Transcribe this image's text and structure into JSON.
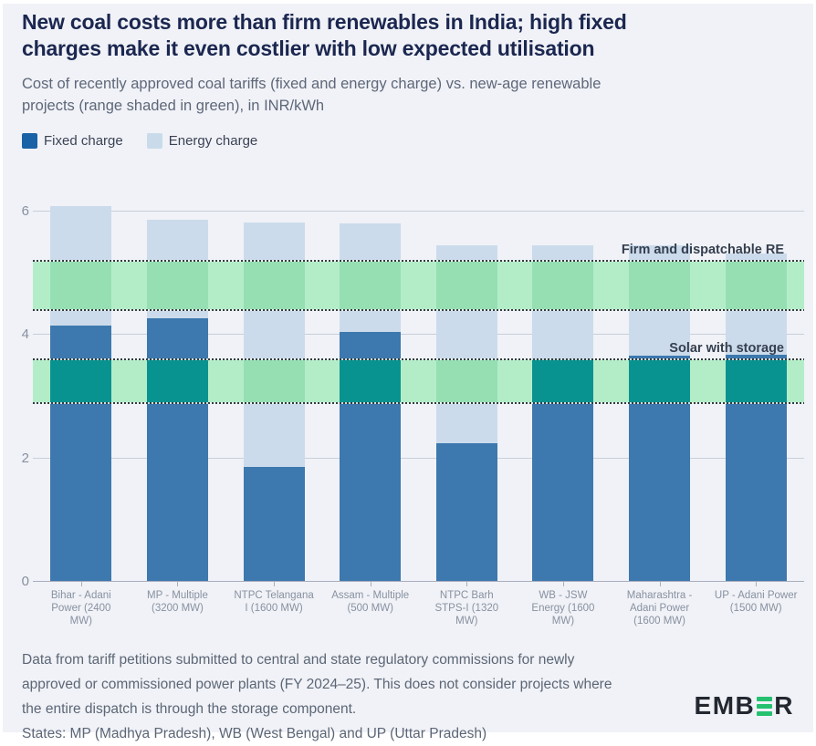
{
  "header": {
    "title_line1": "New coal costs more than firm renewables in India; high fixed",
    "title_line2": "charges make it even costlier with low expected utilisation",
    "subtitle_line1": "Cost of recently approved coal tariffs (fixed and energy charge) vs. new-age renewable",
    "subtitle_line2": "projects (range shaded in green), in INR/kWh"
  },
  "legend": {
    "fixed_label": "Fixed charge",
    "energy_label": "Energy charge"
  },
  "chart_data": {
    "type": "bar",
    "stacked": true,
    "unit": "INR/kWh",
    "categories": [
      "Bihar - Adani Power (2400 MW)",
      "MP - Multiple (3200 MW)",
      "NTPC Telangana I (1600 MW)",
      "Assam - Multiple (500 MW)",
      "NTPC Barh STPS-I (1320 MW)",
      "WB - JSW Energy (1600 MW)",
      "Maharashtra - Adani Power (1600 MW)",
      "UP - Adani Power (1500 MW)"
    ],
    "series": [
      {
        "name": "Fixed charge",
        "values": [
          4.15,
          4.27,
          1.86,
          4.05,
          2.24,
          3.62,
          3.67,
          3.68
        ]
      },
      {
        "name": "Energy charge",
        "values": [
          1.93,
          1.59,
          3.95,
          1.74,
          3.2,
          1.82,
          1.77,
          1.63
        ]
      }
    ],
    "totals": [
      6.08,
      5.86,
      5.81,
      5.79,
      5.44,
      5.44,
      5.44,
      5.31
    ],
    "y_axis": {
      "ticks": [
        0,
        2,
        4,
        6
      ],
      "max": 6.32
    },
    "bands": [
      {
        "label": "Firm and dispatchable RE",
        "from": 4.4,
        "to": 5.2
      },
      {
        "label": "Solar with storage",
        "from": 2.9,
        "to": 3.6
      }
    ],
    "colors": {
      "fixed_swatch": "#1a62a6",
      "energy_swatch": "#c9dbea",
      "fixed_bar": "#3d78ae",
      "energy_bar": "#cbdbeb",
      "band_bg": "#b3edc8",
      "band_on_energy": "#95dfb3",
      "band_on_fixed": "#089390",
      "grid": "#c9ceda",
      "axis": "#a9afbd",
      "dotted": "#2e3d3d"
    }
  },
  "footer": {
    "line1": "Data from tariff petitions submitted to central and state regulatory commissions for newly",
    "line2": "approved or commissioned power plants (FY 2024–25). This does not consider projects where",
    "line3": "the entire dispatch is through the storage component.",
    "line4": "States: MP (Madhya Pradesh), WB (West Bengal) and UP (Uttar Pradesh)"
  },
  "logo": {
    "prefix": "EMB",
    "suffix": "R"
  }
}
